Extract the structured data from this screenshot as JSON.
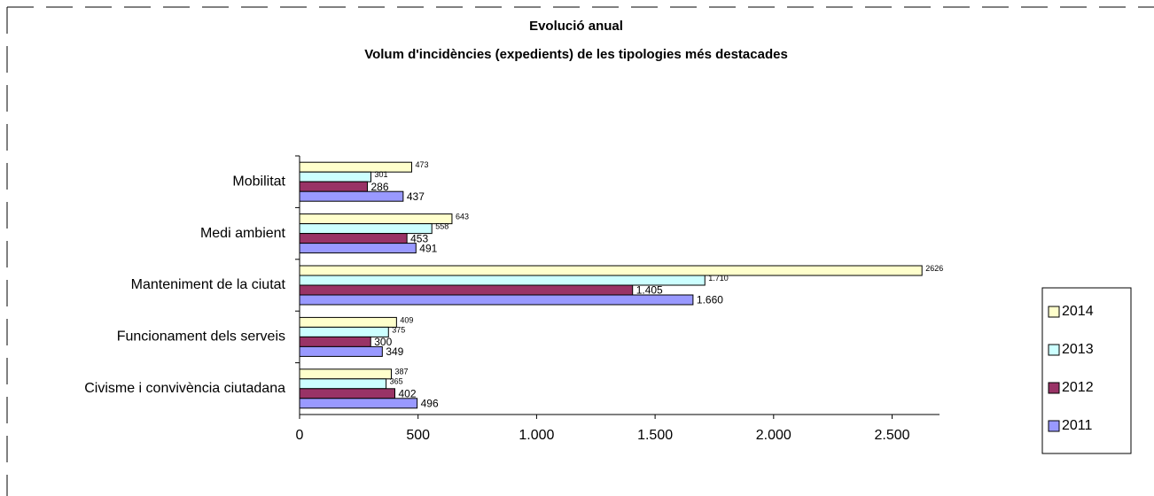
{
  "chart_data": {
    "type": "bar",
    "orientation": "horizontal",
    "title": "Evolució anual",
    "subtitle": "Volum d'incidències (expedients) de les tipologies més destacades",
    "categories": [
      "Mobilitat",
      "Medi ambient",
      "Manteniment de la ciutat",
      "Funcionament dels serveis",
      "Civisme i convivència ciutadana"
    ],
    "series": [
      {
        "name": "2014",
        "color": "#ffffcc",
        "values": [
          473,
          643,
          2626,
          409,
          387
        ],
        "value_labels": [
          "473",
          "643",
          "2626",
          "409",
          "387"
        ]
      },
      {
        "name": "2013",
        "color": "#ccffff",
        "values": [
          301,
          558,
          1710,
          375,
          365
        ],
        "value_labels": [
          "301",
          "558",
          "1.710",
          "375",
          "365"
        ]
      },
      {
        "name": "2012",
        "color": "#993366",
        "values": [
          286,
          453,
          1405,
          300,
          402
        ],
        "value_labels": [
          "286",
          "453",
          "1.405",
          "300",
          "402"
        ]
      },
      {
        "name": "2011",
        "color": "#9999ff",
        "values": [
          437,
          491,
          1660,
          349,
          496
        ],
        "value_labels": [
          "437",
          "491",
          "1.660",
          "349",
          "496"
        ]
      }
    ],
    "xlim": [
      0,
      2700
    ],
    "xticks": [
      0,
      500,
      {
        "value": 1000,
        "label": "1.000"
      },
      {
        "value": 1500,
        "label": "1.500"
      },
      {
        "value": 2000,
        "label": "2.000"
      },
      {
        "value": 2500,
        "label": "2.500"
      }
    ],
    "legend": "right"
  }
}
